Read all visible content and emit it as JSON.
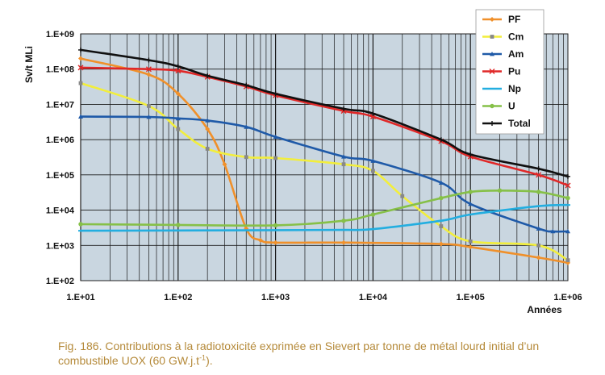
{
  "chart_data": {
    "type": "line",
    "title": "",
    "xlabel": "Années",
    "ylabel": "Sv/t MLi",
    "x_scale": "log",
    "y_scale": "log",
    "xlim": [
      10,
      1000000
    ],
    "ylim": [
      100,
      1000000000
    ],
    "x_ticks": [
      "1.E+01",
      "1.E+02",
      "1.E+03",
      "1.E+04",
      "1.E+05",
      "1.E+06"
    ],
    "y_ticks": [
      "1.E+09",
      "1.E+08",
      "1.E+07",
      "1.E+06",
      "1.E+05",
      "1.E+04",
      "1.E+03",
      "1.E+02"
    ],
    "grid": true,
    "plot_background": "#c9d6e0",
    "legend_position": "top-right",
    "series": [
      {
        "name": "PF",
        "color": "#f0902a",
        "points": [
          [
            10,
            200000000
          ],
          [
            50,
            70000000
          ],
          [
            100,
            20000000
          ],
          [
            200,
            2000000
          ],
          [
            300,
            200000
          ],
          [
            500,
            3000
          ],
          [
            700,
            1400
          ],
          [
            1000,
            1200
          ],
          [
            5000,
            1200
          ],
          [
            50000,
            1100
          ],
          [
            100000,
            900
          ],
          [
            500000,
            450
          ],
          [
            1000000,
            320
          ]
        ]
      },
      {
        "name": "Cm",
        "color": "#f2ee3c",
        "points": [
          [
            10,
            40000000
          ],
          [
            50,
            9000000
          ],
          [
            100,
            2000000
          ],
          [
            200,
            550000
          ],
          [
            500,
            320000
          ],
          [
            1000,
            300000
          ],
          [
            5000,
            200000
          ],
          [
            10000,
            130000
          ],
          [
            20000,
            25000
          ],
          [
            50000,
            3500
          ],
          [
            100000,
            1300
          ],
          [
            500000,
            1000
          ],
          [
            1000000,
            380
          ]
        ]
      },
      {
        "name": "Am",
        "color": "#1f5aa8",
        "points": [
          [
            10,
            4500000
          ],
          [
            50,
            4400000
          ],
          [
            100,
            4000000
          ],
          [
            200,
            3500000
          ],
          [
            500,
            2300000
          ],
          [
            1000,
            1200000
          ],
          [
            5000,
            330000
          ],
          [
            10000,
            250000
          ],
          [
            50000,
            60000
          ],
          [
            100000,
            15000
          ],
          [
            500000,
            3000
          ],
          [
            700000,
            2500
          ],
          [
            1000000,
            2500
          ]
        ]
      },
      {
        "name": "Pu",
        "color": "#e02828",
        "points": [
          [
            10,
            110000000
          ],
          [
            50,
            100000000
          ],
          [
            100,
            90000000
          ],
          [
            200,
            60000000
          ],
          [
            500,
            32000000
          ],
          [
            1000,
            18000000
          ],
          [
            5000,
            6500000
          ],
          [
            10000,
            4500000
          ],
          [
            50000,
            900000
          ],
          [
            100000,
            330000
          ],
          [
            500000,
            100000
          ],
          [
            1000000,
            50000
          ]
        ]
      },
      {
        "name": "Np",
        "color": "#23aee0",
        "points": [
          [
            10,
            2600
          ],
          [
            100,
            2650
          ],
          [
            1000,
            2700
          ],
          [
            5000,
            2750
          ],
          [
            10000,
            2900
          ],
          [
            50000,
            5000
          ],
          [
            100000,
            7500
          ],
          [
            500000,
            13000
          ],
          [
            1000000,
            14000
          ]
        ]
      },
      {
        "name": "U",
        "color": "#86c048",
        "points": [
          [
            10,
            4000
          ],
          [
            100,
            3800
          ],
          [
            1000,
            3700
          ],
          [
            5000,
            5000
          ],
          [
            10000,
            7500
          ],
          [
            50000,
            22000
          ],
          [
            100000,
            33000
          ],
          [
            200000,
            36000
          ],
          [
            500000,
            33000
          ],
          [
            1000000,
            22000
          ]
        ]
      },
      {
        "name": "Total",
        "color": "#101010",
        "points": [
          [
            10,
            350000000
          ],
          [
            50,
            180000000
          ],
          [
            100,
            120000000
          ],
          [
            200,
            65000000
          ],
          [
            500,
            35000000
          ],
          [
            1000,
            20000000
          ],
          [
            5000,
            7500000
          ],
          [
            10000,
            5500000
          ],
          [
            50000,
            1000000
          ],
          [
            100000,
            380000
          ],
          [
            500000,
            150000
          ],
          [
            1000000,
            90000
          ]
        ]
      }
    ]
  },
  "caption": {
    "part1": "Fig. 186. Contributions à la radiotoxicité exprimée en Sievert par tonne de métal lourd initial d’un combustible UOX (60 GW.j.t",
    "sup": "-1",
    "part2": ")."
  }
}
